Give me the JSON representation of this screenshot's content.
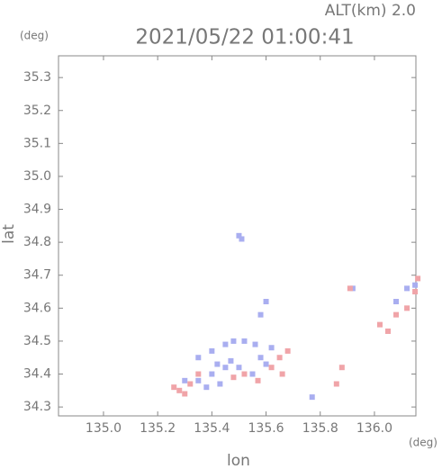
{
  "chart_data": {
    "type": "scatter",
    "title": "2021/05/22 01:00:41",
    "subtitle": "ALT(km) 2.0",
    "x_label": "lon",
    "y_label": "lat",
    "x_unit": "(deg)",
    "y_unit": "(deg)",
    "xlim": [
      134.834,
      136.153
    ],
    "ylim": [
      34.273,
      35.366
    ],
    "xticks": [
      {
        "value": 135,
        "label": "135.0"
      },
      135.2,
      135.4,
      135.6,
      135.8,
      {
        "value": 136,
        "label": "136.0"
      }
    ],
    "yticks": [
      34.3,
      34.4,
      34.5,
      34.6,
      34.7,
      34.8,
      34.9,
      {
        "value": 35,
        "label": "35.0"
      },
      35.1,
      35.2,
      35.3
    ],
    "series": [
      {
        "color": "#a9aef0",
        "x": [
          135.5,
          135.51,
          135.45,
          135.48,
          135.52,
          135.56,
          135.4,
          135.42,
          135.45,
          135.4,
          135.35,
          135.38,
          135.47,
          135.5,
          135.55,
          135.58,
          135.6,
          135.43,
          135.3,
          135.62,
          135.35,
          136.08,
          136.12,
          135.92,
          135.77,
          135.6,
          135.58,
          136.15
        ],
        "values": [
          34.82,
          34.81,
          34.49,
          34.5,
          34.5,
          34.49,
          34.47,
          34.43,
          34.42,
          34.4,
          34.38,
          34.36,
          34.44,
          34.42,
          34.4,
          34.45,
          34.43,
          34.37,
          34.38,
          34.48,
          34.45,
          34.62,
          34.66,
          34.66,
          34.33,
          34.62,
          34.58,
          34.67
        ]
      },
      {
        "color": "#f0a4a8",
        "x": [
          135.26,
          135.28,
          135.3,
          135.32,
          135.35,
          135.52,
          135.62,
          135.65,
          135.66,
          135.68,
          136.05,
          136.02,
          136.08,
          136.12,
          136.15,
          136.16,
          135.91,
          135.86,
          135.88,
          135.48,
          135.57
        ],
        "values": [
          34.36,
          34.35,
          34.34,
          34.37,
          34.4,
          34.4,
          34.42,
          34.45,
          34.4,
          34.47,
          34.53,
          34.55,
          34.58,
          34.6,
          34.65,
          34.69,
          34.66,
          34.37,
          34.42,
          34.39,
          34.38
        ]
      }
    ]
  }
}
